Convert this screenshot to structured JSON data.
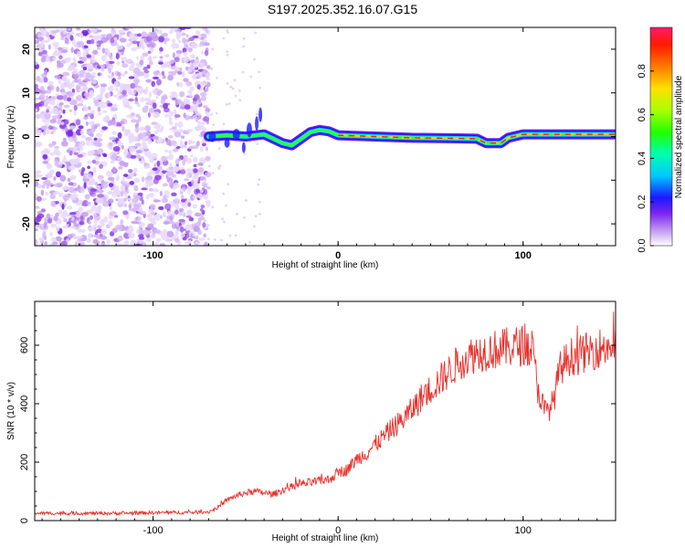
{
  "title": "S197.2025.352.16.07.G15",
  "chart_data": [
    {
      "type": "heatmap",
      "xlabel": "Height of straight line (km)",
      "ylabel": "Frequency (Hz)",
      "xlim": [
        -164,
        150
      ],
      "ylim": [
        -25,
        25
      ],
      "xticks": [
        -100,
        0,
        100
      ],
      "yticks": [
        -20,
        -10,
        0,
        10,
        20
      ],
      "colorbar": {
        "label": "Normalized spectral amplitude",
        "range": [
          0,
          1
        ],
        "ticks": [
          0.0,
          0.2,
          0.4,
          0.6,
          0.8
        ]
      },
      "ridge": [
        {
          "x": -70,
          "y": 0.0
        },
        {
          "x": -60,
          "y": 0.3
        },
        {
          "x": -50,
          "y": 0.0
        },
        {
          "x": -40,
          "y": 0.5
        },
        {
          "x": -30,
          "y": -1.5
        },
        {
          "x": -25,
          "y": -2.0
        },
        {
          "x": -20,
          "y": -0.5
        },
        {
          "x": -15,
          "y": 1.0
        },
        {
          "x": -10,
          "y": 1.5
        },
        {
          "x": -5,
          "y": 1.2
        },
        {
          "x": 0,
          "y": 0.3
        },
        {
          "x": 20,
          "y": 0.0
        },
        {
          "x": 40,
          "y": -0.3
        },
        {
          "x": 60,
          "y": -0.4
        },
        {
          "x": 75,
          "y": -0.5
        },
        {
          "x": 80,
          "y": -1.5
        },
        {
          "x": 88,
          "y": -1.5
        },
        {
          "x": 92,
          "y": -0.3
        },
        {
          "x": 100,
          "y": 0.5
        },
        {
          "x": 120,
          "y": 0.5
        },
        {
          "x": 150,
          "y": 0.5
        }
      ]
    },
    {
      "type": "line",
      "xlabel": "Height of straight line (km)",
      "ylabel": "SNR (10 * v/v)",
      "xlim": [
        -164,
        150
      ],
      "ylim": [
        0,
        750
      ],
      "xticks": [
        -100,
        0,
        100
      ],
      "yticks": [
        0,
        200,
        400,
        600
      ],
      "color": "#e8302b",
      "series": [
        {
          "name": "SNR",
          "x": [
            -164,
            -140,
            -120,
            -100,
            -80,
            -70,
            -65,
            -60,
            -55,
            -50,
            -45,
            -40,
            -35,
            -30,
            -25,
            -20,
            -15,
            -10,
            -5,
            0,
            5,
            10,
            15,
            20,
            25,
            30,
            35,
            40,
            45,
            50,
            55,
            60,
            65,
            70,
            75,
            80,
            85,
            90,
            95,
            100,
            105,
            108,
            112,
            116,
            120,
            125,
            130,
            140,
            150
          ],
          "y": [
            25,
            25,
            25,
            27,
            28,
            30,
            45,
            70,
            85,
            95,
            100,
            95,
            90,
            105,
            115,
            125,
            130,
            135,
            140,
            165,
            175,
            210,
            230,
            260,
            290,
            320,
            345,
            380,
            420,
            450,
            480,
            510,
            540,
            560,
            575,
            580,
            585,
            590,
            595,
            600,
            590,
            450,
            370,
            400,
            520,
            560,
            565,
            590,
            600
          ]
        }
      ]
    }
  ]
}
